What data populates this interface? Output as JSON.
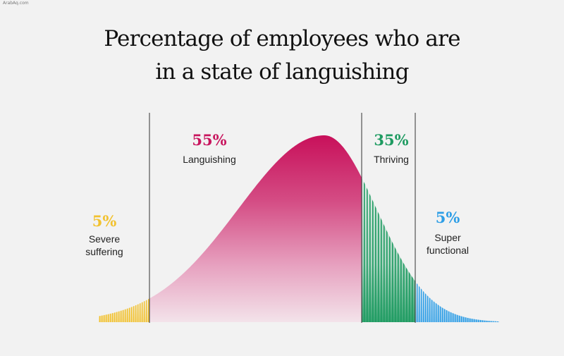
{
  "watermark": "ArabAq.com",
  "title_lines": [
    "Percentage of employees who are",
    "in a state of languishing"
  ],
  "chart_data": {
    "type": "area",
    "title": "Percentage of employees who are in a state of languishing",
    "distribution": "bell-curve",
    "segments": [
      {
        "name": "Severe suffering",
        "label_lines": [
          "Severe",
          "suffering"
        ],
        "value": 5,
        "value_label": "5%",
        "color": "#f2c230"
      },
      {
        "name": "Languishing",
        "label_lines": [
          "Languishing"
        ],
        "value": 55,
        "value_label": "55%",
        "color": "#c8155e"
      },
      {
        "name": "Thriving",
        "label_lines": [
          "Thriving"
        ],
        "value": 35,
        "value_label": "35%",
        "color": "#1e9b61"
      },
      {
        "name": "Super functional",
        "label_lines": [
          "Super",
          "functional"
        ],
        "value": 5,
        "value_label": "5%",
        "color": "#2e9ee6"
      }
    ]
  }
}
